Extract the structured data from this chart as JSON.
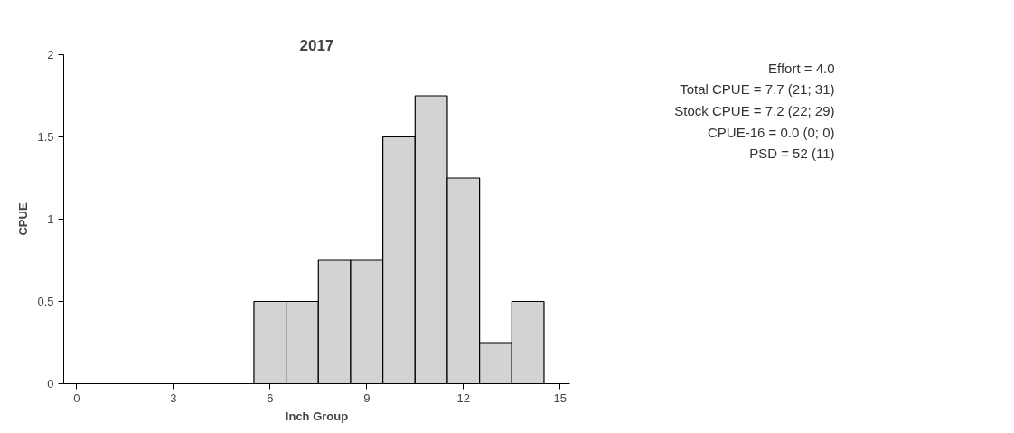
{
  "chart_data": {
    "type": "histogram",
    "title": "2017",
    "xlabel": "Inch Group",
    "ylabel": "CPUE",
    "bins": [
      5.5,
      6.5,
      7.5,
      8.5,
      9.5,
      10.5,
      11.5,
      12.5,
      13.5,
      14.5
    ],
    "values": [
      0.5,
      0.5,
      0.75,
      0.75,
      1.5,
      1.75,
      1.25,
      0.25,
      0.5
    ],
    "color": "#d3d3d3",
    "xlim": [
      -0.4,
      15.3
    ],
    "xticks": [
      0,
      3,
      6,
      9,
      12,
      15
    ],
    "ylim": [
      0,
      2
    ],
    "yticks": [
      0,
      0.5,
      1,
      1.5,
      2
    ],
    "grid": false,
    "annotations": [
      "Effort = 4.0",
      "Total CPUE = 7.7 (21; 31)",
      "Stock CPUE = 7.2 (22; 29)",
      "CPUE-16 = 0.0 (0; 0)",
      "PSD = 52 (11)"
    ]
  }
}
